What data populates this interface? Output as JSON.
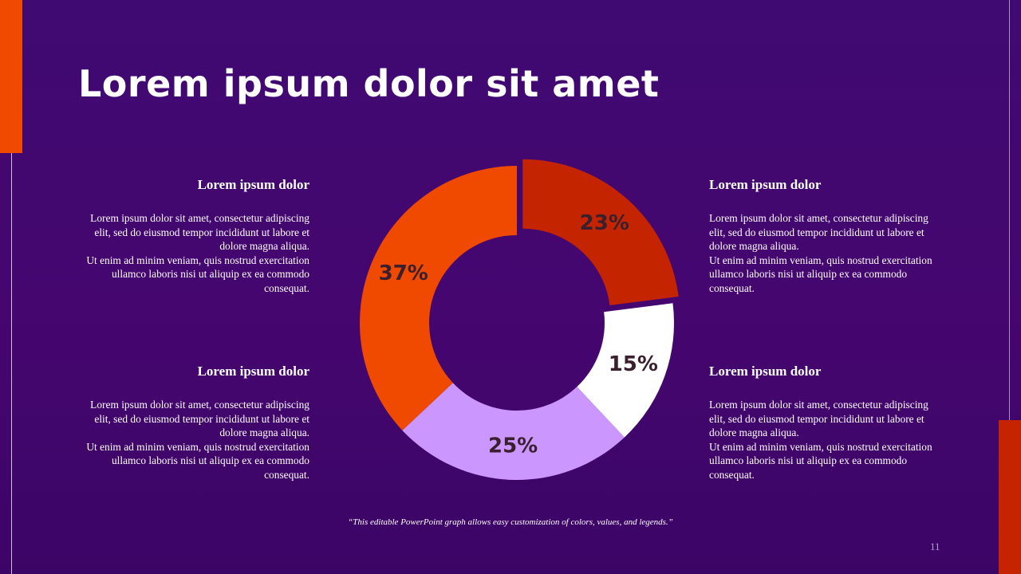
{
  "slide": {
    "title": "Lorem ipsum dolor sit amet",
    "footnote": "“This editable PowerPoint graph allows easy customization of colors, values, and legends.”",
    "page_number": "11",
    "colors": {
      "background": "#40086e",
      "accent_orange": "#f04a00",
      "accent_red": "#c62300"
    }
  },
  "blocks": [
    {
      "heading": "Lorem ipsum dolor",
      "body": "Lorem ipsum dolor sit amet, consectetur adipiscing elit, sed do eiusmod tempor incididunt ut labore et dolore magna aliqua.",
      "body2": "Ut enim ad minim veniam, quis nostrud exercitation ullamco laboris nisi ut aliquip ex ea commodo consequat."
    },
    {
      "heading": "Lorem ipsum dolor",
      "body": "Lorem ipsum dolor sit amet, consectetur adipiscing elit, sed do eiusmod tempor incididunt ut labore et dolore magna aliqua.",
      "body2": "Ut enim ad minim veniam, quis nostrud exercitation ullamco laboris nisi ut aliquip ex ea commodo consequat."
    },
    {
      "heading": "Lorem ipsum dolor",
      "body": "Lorem ipsum dolor sit amet, consectetur adipiscing elit, sed do eiusmod tempor incididunt ut labore et dolore magna aliqua.",
      "body2": "Ut enim ad minim veniam, quis nostrud exercitation ullamco laboris nisi ut aliquip ex ea commodo consequat."
    },
    {
      "heading": "Lorem ipsum dolor",
      "body": "Lorem ipsum dolor sit amet, consectetur adipiscing elit, sed do eiusmod tempor incididunt ut labore et dolore magna aliqua.",
      "body2": "Ut enim ad minim veniam, quis nostrud exercitation ullamco laboris nisi ut aliquip ex ea commodo consequat."
    }
  ],
  "chart_data": {
    "type": "pie",
    "variant": "donut",
    "start": "top, clockwise",
    "exploded_slice": "23%",
    "slices": [
      {
        "value": 23,
        "label": "23%",
        "color": "#c42400"
      },
      {
        "value": 15,
        "label": "15%",
        "color": "#ffffff"
      },
      {
        "value": 25,
        "label": "25%",
        "color": "#cc96ff"
      },
      {
        "value": 37,
        "label": "37%",
        "color": "#f04a00"
      }
    ]
  }
}
